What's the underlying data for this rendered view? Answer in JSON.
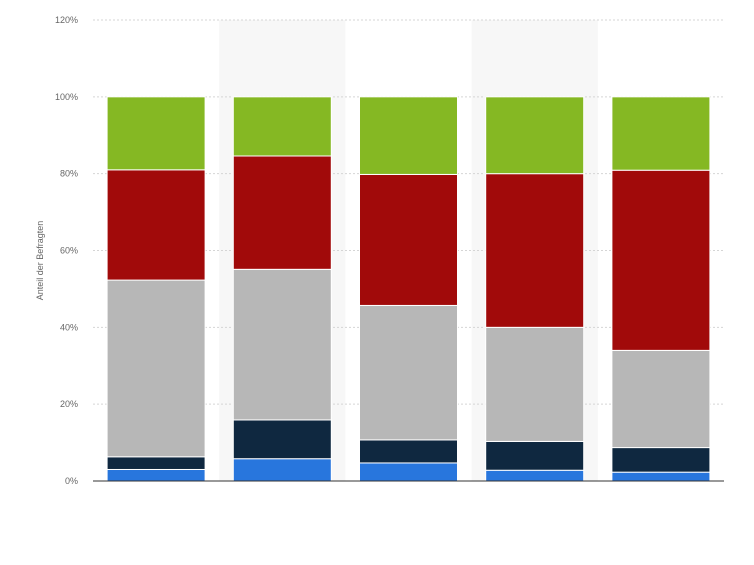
{
  "chart_data": {
    "type": "bar",
    "stacked": true,
    "categories": [
      "",
      "",
      "",
      "",
      ""
    ],
    "series": [
      {
        "color": "#2876dd",
        "values": [
          3,
          5.8,
          4.7,
          2.8,
          2.3
        ]
      },
      {
        "color": "#0f2840",
        "values": [
          3.3,
          10.1,
          6,
          7.5,
          6.4
        ]
      },
      {
        "color": "#b7b7b7",
        "values": [
          46,
          39.2,
          35,
          29.7,
          25.3
        ]
      },
      {
        "color": "#a10a0a",
        "values": [
          28.7,
          29.5,
          34.1,
          40,
          46.9
        ]
      },
      {
        "color": "#85b823",
        "values": [
          19,
          15.4,
          20.2,
          20,
          19.1
        ]
      }
    ],
    "ylabel": "Anteil der Befragten",
    "ylim": [
      0,
      120
    ],
    "yticks": [
      0,
      20,
      40,
      60,
      80,
      100,
      120
    ],
    "ytick_labels": [
      "0%",
      "20%",
      "40%",
      "60%",
      "80%",
      "100%",
      "120%"
    ],
    "grid": true,
    "alternate_band_color": "#f7f7f7",
    "gridline_color": "#d5d5d5"
  }
}
